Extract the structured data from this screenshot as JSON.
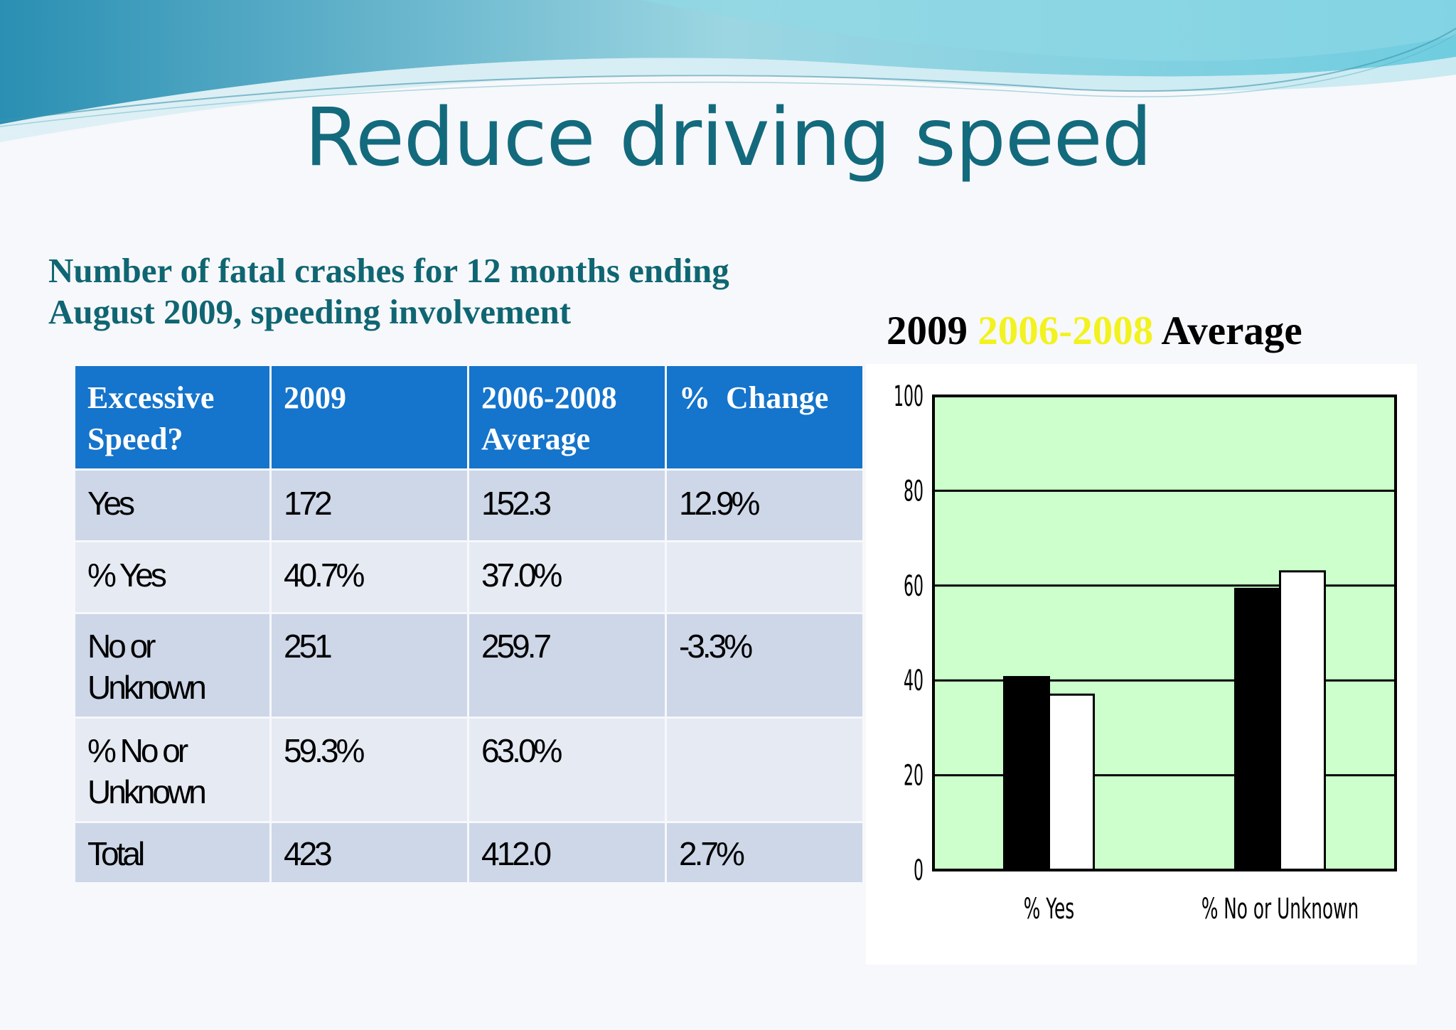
{
  "slide": {
    "title": "Reduce driving speed",
    "subtitle_line1": "Number of fatal crashes for 12 months ending",
    "subtitle_line2": "August 2009, speeding involvement"
  },
  "table": {
    "headers": {
      "col1_line1": "Excessive",
      "col1_line2": "Speed?",
      "col2": "2009",
      "col3_line1": "2006-2008",
      "col3_line2": "Average",
      "col4": "%  Change"
    },
    "rows": [
      {
        "label_line1": "Yes",
        "label_line2": "",
        "y2009": "172",
        "avg": "152.3",
        "change": "12.9%"
      },
      {
        "label_line1": "% Yes",
        "label_line2": "",
        "y2009": "40.7%",
        "avg": "37.0%",
        "change": ""
      },
      {
        "label_line1": "No or",
        "label_line2": "Unknown",
        "y2009": "251",
        "avg": "259.7",
        "change": "-3.3%"
      },
      {
        "label_line1": "% No or",
        "label_line2": "Unknown",
        "y2009": "59.3%",
        "avg": "63.0%",
        "change": ""
      },
      {
        "label_line1": "Total",
        "label_line2": "",
        "y2009": "423",
        "avg": "412.0",
        "change": "2.7%"
      }
    ]
  },
  "chart_data": {
    "type": "bar",
    "categories": [
      "% Yes",
      "% No or Unknown"
    ],
    "series": [
      {
        "name": "2009",
        "values": [
          40.7,
          59.3
        ],
        "color": "#000000"
      },
      {
        "name": "2006-2008 Average",
        "values": [
          37.0,
          63.0
        ],
        "color": "#ffffff"
      }
    ],
    "legend": {
      "text_2009": "2009",
      "text_avg_years": "2006-2008",
      "text_avg_word": "Average",
      "placement": "top"
    },
    "ylim": [
      0,
      100
    ],
    "yticks": [
      0,
      20,
      40,
      60,
      80,
      100
    ],
    "grid": true,
    "plot_background": "#ccffcc",
    "xlabel": "",
    "ylabel": ""
  },
  "colors": {
    "title": "#136a7d",
    "header_bg": "#1574cb",
    "row_odd": "#cdd7e8",
    "row_even": "#e6eaf3",
    "legend_avg": "#f2f21f"
  }
}
